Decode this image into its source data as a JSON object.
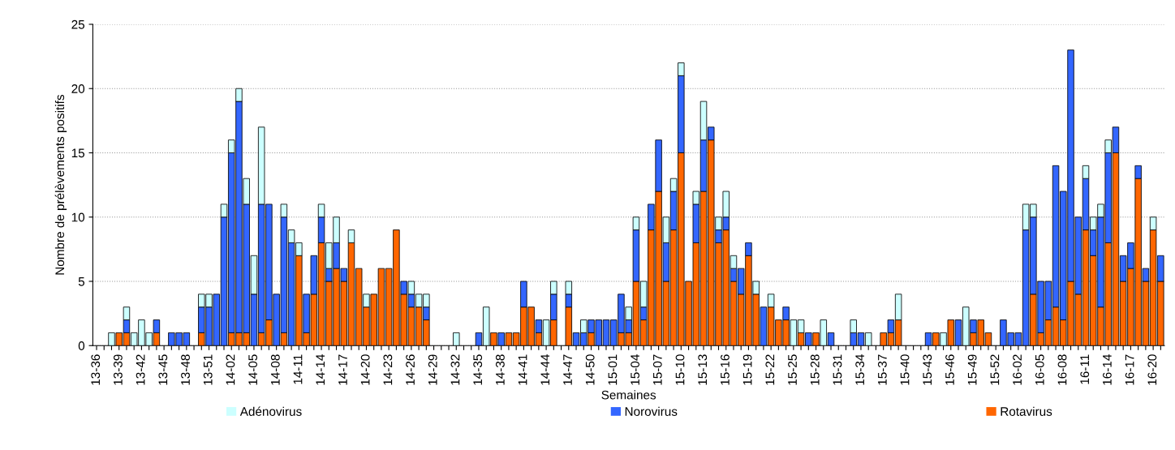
{
  "chart_data": {
    "type": "bar",
    "stacked": true,
    "xlabel": "Semaines",
    "ylabel": "Nombre de prélèvements positifs",
    "categories": [
      "13-36",
      null,
      null,
      "13-39",
      null,
      null,
      "13-42",
      null,
      null,
      "13-45",
      null,
      null,
      "13-48",
      null,
      null,
      "13-51",
      null,
      null,
      "14-02",
      null,
      null,
      "14-05",
      null,
      null,
      "14-08",
      null,
      null,
      "14-11",
      null,
      null,
      "14-14",
      null,
      null,
      "14-17",
      null,
      null,
      "14-20",
      null,
      null,
      "14-23",
      null,
      null,
      "14-26",
      null,
      null,
      "14-29",
      null,
      null,
      "14-32",
      null,
      null,
      "14-35",
      null,
      null,
      "14-38",
      null,
      null,
      "14-41",
      null,
      null,
      "14-44",
      null,
      null,
      "14-47",
      null,
      null,
      "14-50",
      null,
      null,
      "15-01",
      null,
      null,
      "15-04",
      null,
      null,
      "15-07",
      null,
      null,
      "15-10",
      null,
      null,
      "15-13",
      null,
      null,
      "15-16",
      null,
      null,
      "15-19",
      null,
      null,
      "15-22",
      null,
      null,
      "15-25",
      null,
      null,
      "15-28",
      null,
      null,
      "15-31",
      null,
      null,
      "15-34",
      null,
      null,
      "15-37",
      null,
      null,
      "15-40",
      null,
      null,
      "15-43",
      null,
      null,
      "15-46",
      null,
      null,
      "15-49",
      null,
      null,
      "15-52",
      null,
      null,
      "16-02",
      null,
      null,
      "16-05",
      null,
      null,
      "16-08",
      null,
      null,
      "16-11",
      null,
      null,
      "16-14",
      null,
      null,
      "16-17",
      null,
      null,
      "16-20",
      null
    ],
    "series": [
      {
        "name": "Rotavirus",
        "color": "#ff6600",
        "values": [
          0,
          0,
          0,
          1,
          1,
          0,
          0,
          0,
          1,
          0,
          0,
          0,
          0,
          0,
          1,
          0,
          0,
          0,
          1,
          1,
          1,
          0,
          1,
          2,
          0,
          1,
          0,
          7,
          1,
          4,
          8,
          5,
          6,
          5,
          8,
          6,
          3,
          4,
          6,
          6,
          9,
          4,
          3,
          3,
          2,
          0,
          0,
          0,
          0,
          0,
          0,
          0,
          0,
          1,
          0,
          1,
          1,
          3,
          3,
          1,
          0,
          2,
          0,
          3,
          0,
          0,
          1,
          0,
          0,
          0,
          1,
          1,
          5,
          2,
          9,
          12,
          5,
          9,
          15,
          5,
          8,
          12,
          16,
          8,
          9,
          5,
          4,
          7,
          4,
          0,
          3,
          2,
          2,
          0,
          1,
          0,
          1,
          0,
          0,
          0,
          0,
          0,
          0,
          0,
          0,
          1,
          1,
          2,
          0,
          0,
          0,
          0,
          1,
          0,
          2,
          0,
          0,
          1,
          2,
          1,
          0,
          0,
          0,
          0,
          0,
          4,
          1,
          2,
          3,
          2,
          5,
          4,
          9,
          7,
          3,
          8,
          15,
          5,
          6,
          13,
          5,
          9,
          5
        ]
      },
      {
        "name": "Norovirus",
        "color": "#3366ff",
        "values": [
          0,
          0,
          0,
          0,
          1,
          0,
          0,
          0,
          1,
          0,
          1,
          1,
          1,
          0,
          2,
          3,
          4,
          10,
          14,
          18,
          10,
          4,
          10,
          9,
          4,
          9,
          8,
          0,
          3,
          3,
          2,
          1,
          2,
          1,
          0,
          0,
          0,
          0,
          0,
          0,
          0,
          1,
          1,
          0,
          1,
          0,
          0,
          0,
          0,
          0,
          0,
          1,
          0,
          0,
          1,
          0,
          0,
          2,
          0,
          1,
          0,
          2,
          0,
          1,
          1,
          1,
          1,
          2,
          2,
          2,
          3,
          1,
          4,
          1,
          2,
          4,
          3,
          3,
          6,
          0,
          3,
          4,
          1,
          1,
          1,
          1,
          2,
          1,
          0,
          3,
          0,
          0,
          1,
          0,
          0,
          1,
          0,
          0,
          1,
          0,
          0,
          1,
          1,
          0,
          0,
          0,
          1,
          0,
          0,
          0,
          0,
          1,
          0,
          0,
          0,
          2,
          0,
          1,
          0,
          0,
          0,
          2,
          1,
          1,
          9,
          6,
          4,
          3,
          11,
          10,
          18,
          6,
          4,
          2,
          7,
          7,
          2,
          2,
          2,
          1,
          1,
          0,
          2
        ]
      },
      {
        "name": "Adénovirus",
        "color": "#ccffff",
        "values": [
          0,
          0,
          1,
          0,
          1,
          1,
          2,
          1,
          0,
          0,
          0,
          0,
          0,
          0,
          1,
          1,
          0,
          1,
          1,
          1,
          2,
          3,
          6,
          0,
          0,
          1,
          1,
          1,
          0,
          0,
          1,
          2,
          2,
          0,
          1,
          0,
          1,
          0,
          0,
          0,
          0,
          0,
          1,
          1,
          1,
          0,
          0,
          0,
          1,
          0,
          0,
          0,
          3,
          0,
          0,
          0,
          0,
          0,
          0,
          0,
          2,
          1,
          0,
          1,
          0,
          1,
          0,
          0,
          0,
          0,
          0,
          1,
          1,
          2,
          0,
          0,
          2,
          1,
          1,
          0,
          1,
          3,
          0,
          1,
          2,
          1,
          0,
          0,
          1,
          0,
          1,
          0,
          0,
          2,
          1,
          0,
          0,
          2,
          0,
          0,
          0,
          1,
          0,
          1,
          0,
          0,
          0,
          2,
          0,
          0,
          0,
          0,
          0,
          1,
          0,
          0,
          3,
          0,
          0,
          0,
          0,
          0,
          0,
          0,
          2,
          1,
          0,
          0,
          0,
          0,
          0,
          0,
          1,
          1,
          1,
          1,
          0,
          0,
          0,
          0,
          0,
          1,
          0
        ]
      }
    ],
    "ylim": [
      0,
      25
    ],
    "yticks": [
      0,
      5,
      10,
      15,
      20,
      25
    ],
    "grid": "y",
    "legend": "bottom"
  }
}
